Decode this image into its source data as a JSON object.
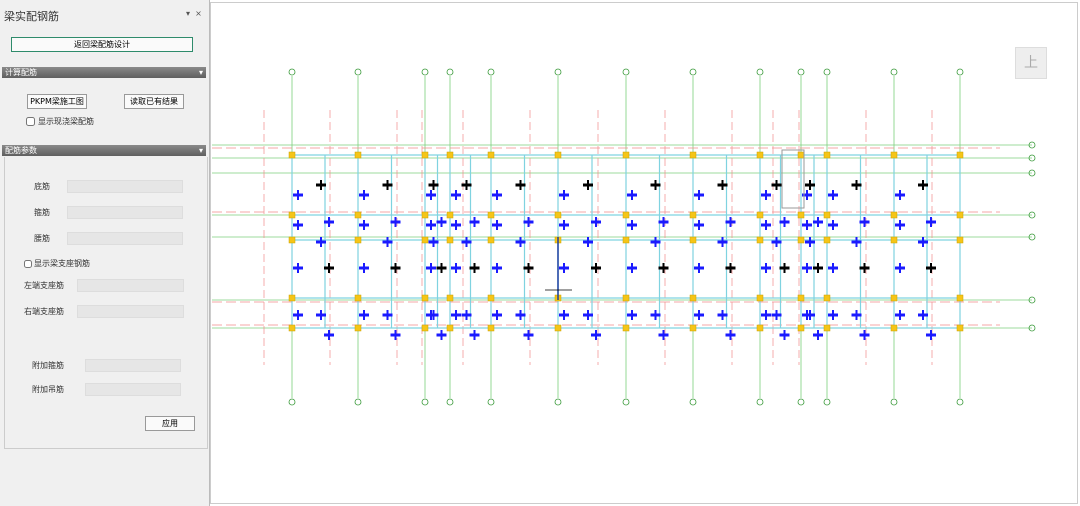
{
  "panel": {
    "title": "梁实配钢筋",
    "back_button": "返回梁配筋设计",
    "calc": {
      "title": "计算配筋",
      "buttons": [
        "PKPM梁施工图",
        "读取已有结果"
      ],
      "checkbox": "显示现浇梁配筋"
    },
    "params": {
      "title": "配筋参数",
      "fields": [
        "底筋",
        "箍筋",
        "腰筋"
      ],
      "checkbox": "显示梁支座钢筋",
      "support_fields": [
        "左端支座筋",
        "右端支座筋"
      ],
      "extra_fields": [
        "附加箍筋",
        "附加吊筋"
      ],
      "apply": "应用"
    }
  },
  "viewport": {
    "view_cube": "上"
  }
}
